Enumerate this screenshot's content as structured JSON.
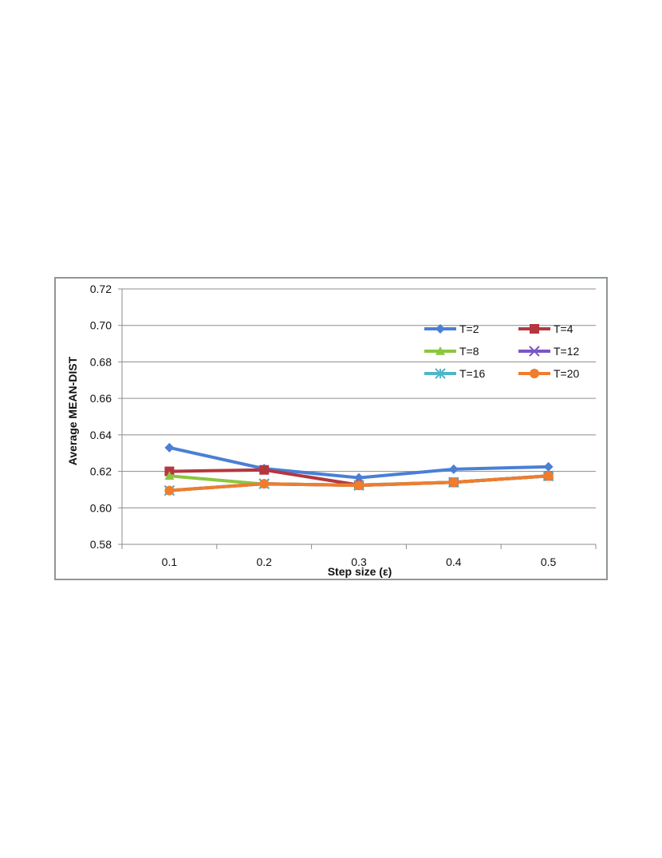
{
  "chart_data": {
    "type": "line",
    "xlabel": "Step size (ε)",
    "ylabel": "Average MEAN-DIST",
    "categories": [
      "0.1",
      "0.2",
      "0.3",
      "0.4",
      "0.5"
    ],
    "ylim": [
      0.58,
      0.72
    ],
    "yticks": [
      "0.58",
      "0.60",
      "0.62",
      "0.64",
      "0.66",
      "0.68",
      "0.70",
      "0.72"
    ],
    "grid": "horizontal",
    "legend_position": "top-right",
    "series": [
      {
        "name": "T=2",
        "color": "#4a7fd4",
        "marker": "diamond",
        "values": [
          0.633,
          0.6215,
          0.6165,
          0.6212,
          0.6225
        ]
      },
      {
        "name": "T=4",
        "color": "#b5373e",
        "marker": "square",
        "values": [
          0.62,
          0.6208,
          0.6125,
          0.614,
          0.6175
        ]
      },
      {
        "name": "T=8",
        "color": "#8cc63f",
        "marker": "triangle",
        "values": [
          0.6175,
          0.613,
          0.6125,
          0.614,
          0.6175
        ]
      },
      {
        "name": "T=12",
        "color": "#7a56c2",
        "marker": "x",
        "values": [
          0.6095,
          0.6132,
          0.6123,
          0.614,
          0.6175
        ]
      },
      {
        "name": "T=16",
        "color": "#4fb6c9",
        "marker": "asterisk",
        "values": [
          0.6095,
          0.6132,
          0.6123,
          0.614,
          0.6175
        ]
      },
      {
        "name": "T=20",
        "color": "#ef7d2d",
        "marker": "circle",
        "values": [
          0.6095,
          0.6132,
          0.6123,
          0.614,
          0.6175
        ]
      }
    ]
  }
}
